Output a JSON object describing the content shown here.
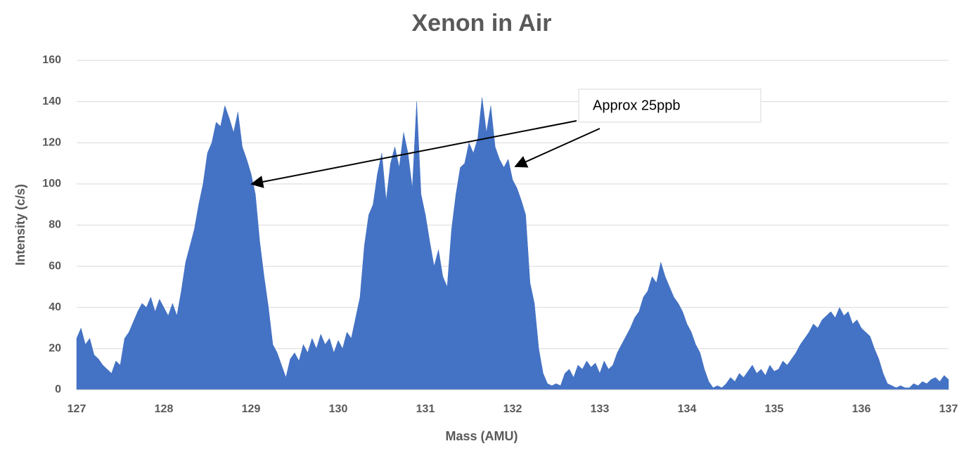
{
  "chart_data": {
    "type": "area",
    "title": "Xenon in Air",
    "x_label": "Mass (AMU)",
    "y_label": "Intensity (c/s)",
    "annotation": "Approx 25ppb",
    "color": "#4472c4",
    "xlim": [
      127,
      137
    ],
    "xticks": [
      127,
      128,
      129,
      130,
      131,
      132,
      133,
      134,
      135,
      136,
      137
    ],
    "ylim": [
      0,
      160
    ],
    "yticks": [
      0,
      20,
      40,
      60,
      80,
      100,
      120,
      140,
      160
    ],
    "grid": true,
    "x": [
      127.0,
      127.05,
      127.1,
      127.15,
      127.2,
      127.25,
      127.3,
      127.35,
      127.4,
      127.45,
      127.5,
      127.55,
      127.6,
      127.65,
      127.7,
      127.75,
      127.8,
      127.85,
      127.9,
      127.95,
      128.0,
      128.05,
      128.1,
      128.15,
      128.2,
      128.25,
      128.3,
      128.35,
      128.4,
      128.45,
      128.5,
      128.55,
      128.6,
      128.65,
      128.7,
      128.75,
      128.8,
      128.85,
      128.9,
      128.95,
      129.0,
      129.05,
      129.1,
      129.15,
      129.2,
      129.25,
      129.3,
      129.35,
      129.4,
      129.45,
      129.5,
      129.55,
      129.6,
      129.65,
      129.7,
      129.75,
      129.8,
      129.85,
      129.9,
      129.95,
      130.0,
      130.05,
      130.1,
      130.15,
      130.2,
      130.25,
      130.3,
      130.35,
      130.4,
      130.45,
      130.5,
      130.55,
      130.6,
      130.65,
      130.7,
      130.75,
      130.8,
      130.85,
      130.9,
      130.95,
      131.0,
      131.05,
      131.1,
      131.15,
      131.2,
      131.25,
      131.3,
      131.35,
      131.4,
      131.45,
      131.5,
      131.55,
      131.6,
      131.65,
      131.7,
      131.75,
      131.8,
      131.85,
      131.9,
      131.95,
      132.0,
      132.05,
      132.1,
      132.15,
      132.2,
      132.25,
      132.3,
      132.35,
      132.4,
      132.45,
      132.5,
      132.55,
      132.6,
      132.65,
      132.7,
      132.75,
      132.8,
      132.85,
      132.9,
      132.95,
      133.0,
      133.05,
      133.1,
      133.15,
      133.2,
      133.25,
      133.3,
      133.35,
      133.4,
      133.45,
      133.5,
      133.55,
      133.6,
      133.65,
      133.7,
      133.75,
      133.8,
      133.85,
      133.9,
      133.95,
      134.0,
      134.05,
      134.1,
      134.15,
      134.2,
      134.25,
      134.3,
      134.35,
      134.4,
      134.45,
      134.5,
      134.55,
      134.6,
      134.65,
      134.7,
      134.75,
      134.8,
      134.85,
      134.9,
      134.95,
      135.0,
      135.05,
      135.1,
      135.15,
      135.2,
      135.25,
      135.3,
      135.35,
      135.4,
      135.45,
      135.5,
      135.55,
      135.6,
      135.65,
      135.7,
      135.75,
      135.8,
      135.85,
      135.9,
      135.95,
      136.0,
      136.05,
      136.1,
      136.15,
      136.2,
      136.25,
      136.3,
      136.35,
      136.4,
      136.45,
      136.5,
      136.55,
      136.6,
      136.65,
      136.7,
      136.75,
      136.8,
      136.85,
      136.9,
      136.95,
      137.0
    ],
    "values": [
      25,
      30,
      22,
      25,
      17,
      15,
      12,
      10,
      8,
      14,
      12,
      25,
      28,
      33,
      38,
      42,
      40,
      45,
      38,
      44,
      40,
      36,
      42,
      36,
      48,
      62,
      70,
      78,
      90,
      100,
      115,
      120,
      130,
      128,
      138,
      132,
      125,
      135,
      118,
      112,
      105,
      95,
      72,
      55,
      40,
      22,
      18,
      12,
      6,
      15,
      18,
      14,
      22,
      18,
      25,
      20,
      27,
      22,
      25,
      18,
      24,
      20,
      28,
      25,
      35,
      45,
      70,
      85,
      90,
      105,
      115,
      92,
      110,
      118,
      108,
      125,
      115,
      98,
      140,
      95,
      85,
      72,
      60,
      68,
      55,
      50,
      78,
      95,
      108,
      110,
      120,
      115,
      122,
      142,
      125,
      138,
      118,
      112,
      108,
      112,
      102,
      98,
      92,
      85,
      52,
      42,
      20,
      8,
      3,
      2,
      3,
      2,
      8,
      10,
      6,
      12,
      10,
      14,
      11,
      13,
      8,
      14,
      10,
      12,
      18,
      22,
      26,
      30,
      35,
      38,
      45,
      48,
      55,
      52,
      62,
      55,
      50,
      45,
      42,
      38,
      32,
      28,
      22,
      18,
      10,
      4,
      1,
      2,
      1,
      3,
      6,
      4,
      8,
      6,
      9,
      12,
      8,
      10,
      7,
      12,
      9,
      10,
      14,
      12,
      15,
      18,
      22,
      25,
      28,
      32,
      30,
      34,
      36,
      38,
      35,
      40,
      36,
      38,
      32,
      34,
      30,
      28,
      26,
      20,
      15,
      8,
      3,
      2,
      1,
      2,
      1,
      1,
      3,
      2,
      4,
      3,
      5,
      6,
      4,
      7,
      5
    ]
  }
}
